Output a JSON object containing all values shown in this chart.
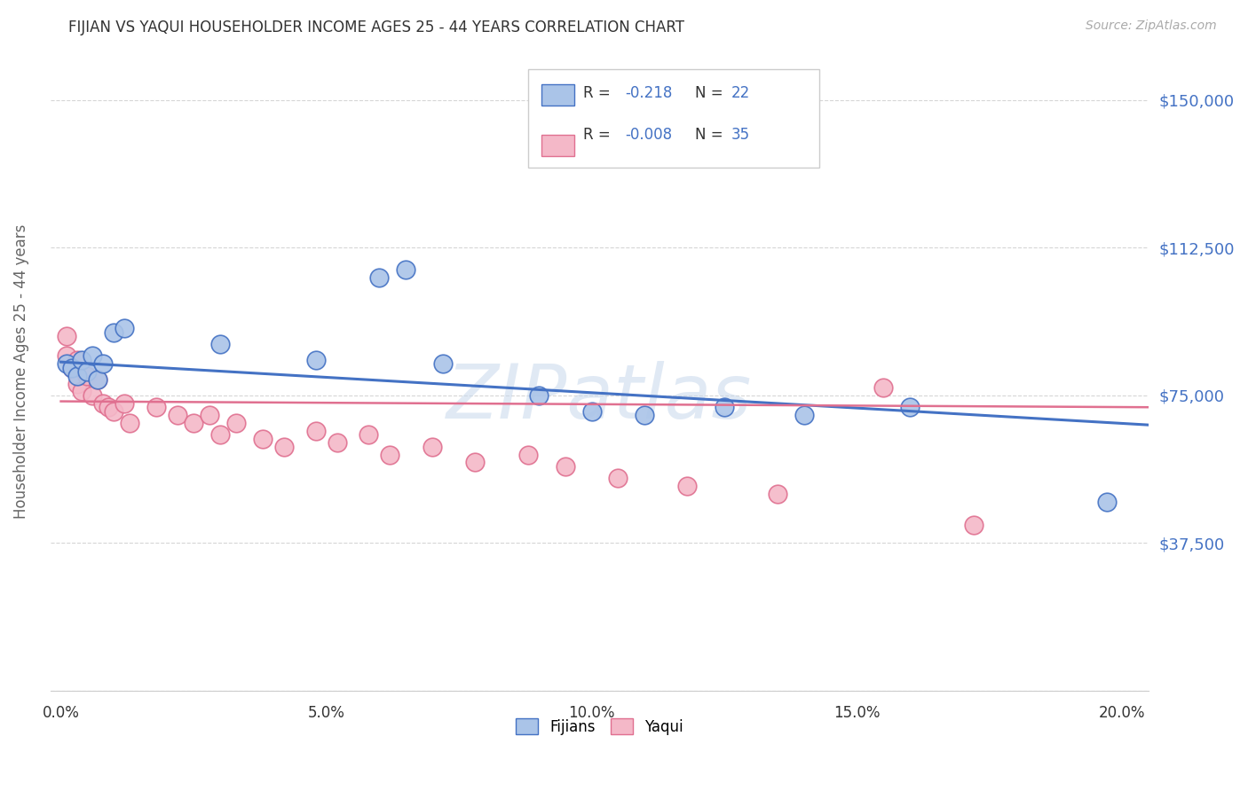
{
  "title": "FIJIAN VS YAQUI HOUSEHOLDER INCOME AGES 25 - 44 YEARS CORRELATION CHART",
  "source": "Source: ZipAtlas.com",
  "xlabel_ticks": [
    "0.0%",
    "5.0%",
    "10.0%",
    "15.0%",
    "20.0%"
  ],
  "xlabel_vals": [
    0.0,
    0.05,
    0.1,
    0.15,
    0.2
  ],
  "ylabel": "Householder Income Ages 25 - 44 years",
  "yticks": [
    0,
    37500,
    75000,
    112500,
    150000
  ],
  "ytick_labels": [
    "",
    "$37,500",
    "$75,000",
    "$112,500",
    "$150,000"
  ],
  "ylim": [
    0,
    162000
  ],
  "xlim": [
    -0.002,
    0.205
  ],
  "fijians_x": [
    0.001,
    0.002,
    0.003,
    0.004,
    0.005,
    0.006,
    0.007,
    0.008,
    0.01,
    0.012,
    0.03,
    0.048,
    0.06,
    0.065,
    0.072,
    0.09,
    0.1,
    0.11,
    0.125,
    0.14,
    0.16,
    0.197
  ],
  "fijians_y": [
    83000,
    82000,
    80000,
    84000,
    81000,
    85000,
    79000,
    83000,
    91000,
    92000,
    88000,
    84000,
    105000,
    107000,
    83000,
    75000,
    71000,
    70000,
    72000,
    70000,
    72000,
    48000
  ],
  "yaqui_x": [
    0.001,
    0.001,
    0.002,
    0.003,
    0.003,
    0.004,
    0.005,
    0.006,
    0.007,
    0.008,
    0.009,
    0.01,
    0.012,
    0.013,
    0.018,
    0.022,
    0.025,
    0.028,
    0.03,
    0.033,
    0.038,
    0.042,
    0.048,
    0.052,
    0.058,
    0.062,
    0.07,
    0.078,
    0.088,
    0.095,
    0.105,
    0.118,
    0.135,
    0.155,
    0.172
  ],
  "yaqui_y": [
    90000,
    85000,
    82000,
    84000,
    78000,
    76000,
    80000,
    75000,
    79000,
    73000,
    72000,
    71000,
    73000,
    68000,
    72000,
    70000,
    68000,
    70000,
    65000,
    68000,
    64000,
    62000,
    66000,
    63000,
    65000,
    60000,
    62000,
    58000,
    60000,
    57000,
    54000,
    52000,
    50000,
    77000,
    42000
  ],
  "fijians_color": "#aac4e8",
  "yaqui_color": "#f4b8c8",
  "fijians_line_color": "#4472c4",
  "yaqui_line_color": "#e07090",
  "r_fijians": -0.218,
  "n_fijians": 22,
  "r_yaqui": -0.008,
  "n_yaqui": 35,
  "legend_fijians": "Fijians",
  "legend_yaqui": "Yaqui",
  "watermark": "ZIPatlas",
  "background_color": "#ffffff",
  "grid_color": "#cccccc",
  "title_color": "#333333",
  "axis_label_color": "#666666",
  "ytick_color": "#4472c4",
  "source_color": "#aaaaaa",
  "fijian_line_endpoints_x": [
    0.0,
    0.205
  ],
  "fijian_line_endpoints_y": [
    83500,
    67500
  ],
  "yaqui_line_endpoints_x": [
    0.0,
    0.205
  ],
  "yaqui_line_endpoints_y": [
    73500,
    72000
  ]
}
